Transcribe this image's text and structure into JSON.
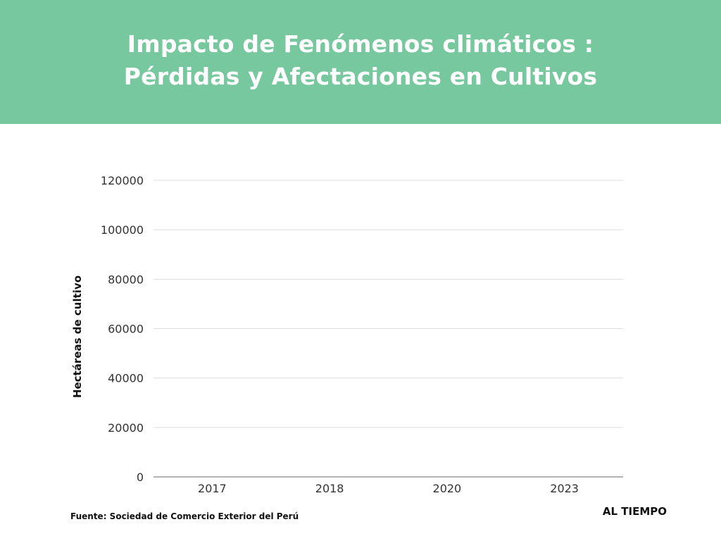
{
  "header": {
    "title_line1": "Impacto de Fenómenos climáticos :",
    "title_line2": "Pérdidas y Afectaciones en Cultivos",
    "background_color": "#77c89f"
  },
  "chart_data": {
    "type": "bar",
    "title": "Impacto de Fenómenos climáticos : Pérdidas y Afectaciones en Cultivos",
    "categories": [
      "2017",
      "2018",
      "2020",
      "2023"
    ],
    "values": [
      0,
      0,
      0,
      0
    ],
    "xlabel": "",
    "ylabel": "Hectáreas de cultivo",
    "ylim": [
      0,
      120000
    ],
    "yticks": [
      "0",
      "20000",
      "40000",
      "60000",
      "80000",
      "100000",
      "120000"
    ],
    "grid": true
  },
  "footer": {
    "source": "Fuente: Sociedad de Comercio Exterior del Perú",
    "brand": "AL TIEMPO"
  }
}
